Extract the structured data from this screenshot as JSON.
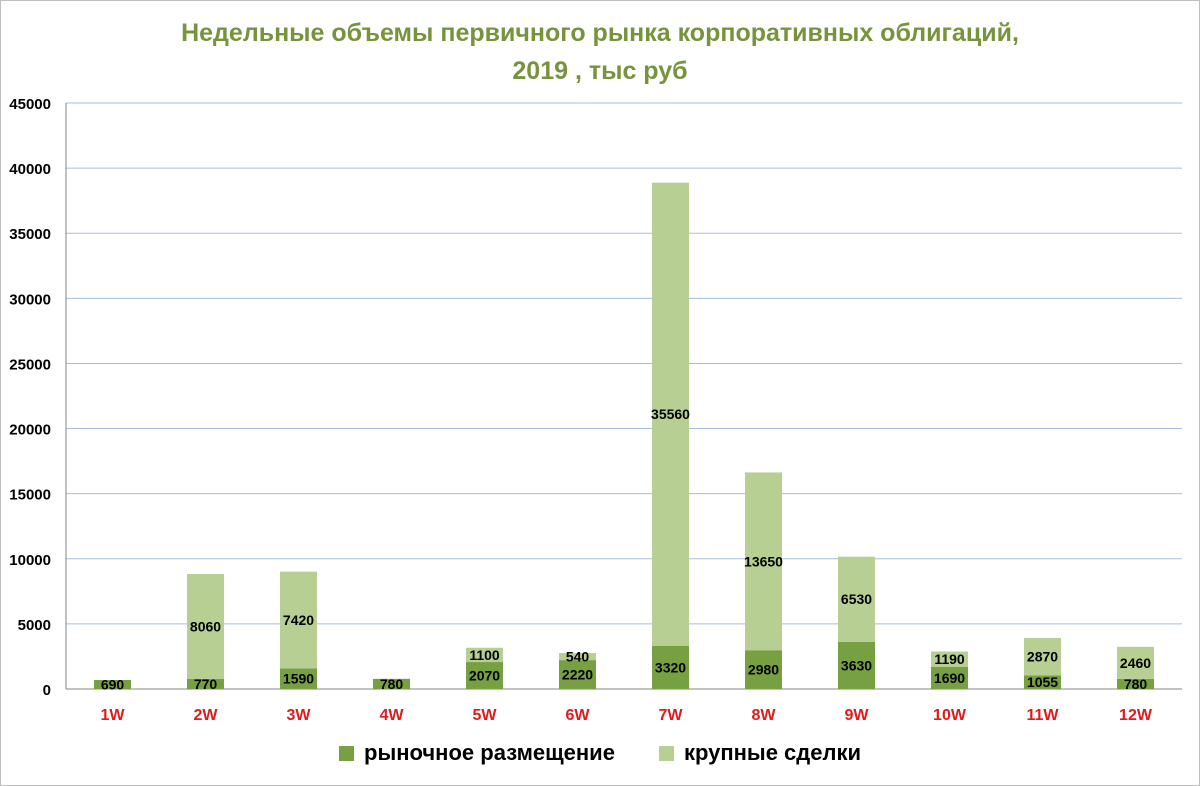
{
  "chart_data": {
    "type": "bar",
    "stacked": true,
    "title": [
      "Недельные объемы первичного рынка корпоративных облигаций,",
      "2019 , тыс руб"
    ],
    "categories": [
      "1W",
      "2W",
      "3W",
      "4W",
      "5W",
      "6W",
      "7W",
      "8W",
      "9W",
      "10W",
      "11W",
      "12W"
    ],
    "series": [
      {
        "name": "рыночное размещение",
        "color": "#77a042",
        "values": [
          690,
          770,
          1590,
          780,
          2070,
          2220,
          3320,
          2980,
          3630,
          1690,
          1055,
          780
        ]
      },
      {
        "name": "крупные сделки",
        "color": "#b7cf93",
        "values": [
          null,
          8060,
          7420,
          null,
          1100,
          540,
          35560,
          13650,
          6530,
          1190,
          2870,
          2460
        ]
      }
    ],
    "ylim": [
      0,
      45000
    ],
    "yticks": [
      0,
      5000,
      10000,
      15000,
      20000,
      25000,
      30000,
      35000,
      40000,
      45000
    ],
    "grid": true,
    "legend_position": "bottom",
    "colors": {
      "title": "#77933c",
      "category_labels": "#e11a1a",
      "gridline": "#a8bde0"
    }
  }
}
